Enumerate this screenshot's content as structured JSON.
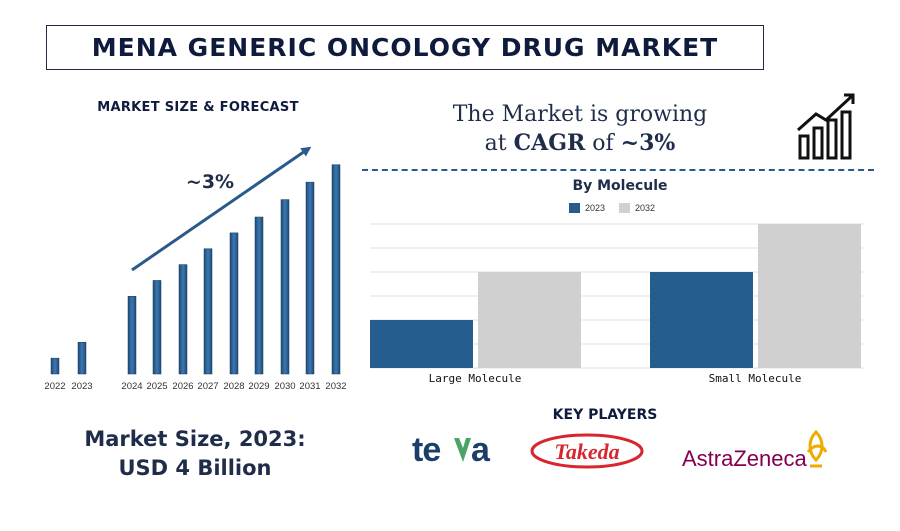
{
  "title": "MENA GENERIC ONCOLOGY DRUG MARKET",
  "forecast": {
    "heading": "MARKET SIZE & FORECAST",
    "growth_label": "~3%"
  },
  "market_size": {
    "line1": "Market Size, 2023:",
    "line2": "USD 4 Billion"
  },
  "cagr": {
    "line1": "The Market is growing",
    "prefix": "at ",
    "cagr_word": "CAGR",
    "of_word": " of ",
    "value": "~3%"
  },
  "molecule": {
    "heading": "By Molecule"
  },
  "key_players": {
    "heading": "KEY PLAYERS",
    "logos": [
      {
        "name": "teva",
        "text": "teva",
        "color": "#1b3f6b"
      },
      {
        "name": "takeda",
        "text": "Takeda",
        "color": "#d7262e"
      },
      {
        "name": "astrazeneca",
        "text": "AstraZeneca",
        "color": "#830051"
      }
    ]
  },
  "colors": {
    "bar_blue": "#255d8e",
    "bar_grey": "#d0d0d0",
    "arrow": "#2a5a8c"
  },
  "chart_data": [
    {
      "type": "bar",
      "title": "MARKET SIZE & FORECAST",
      "categories": [
        "2022",
        "2023",
        "2024",
        "2025",
        "2026",
        "2027",
        "2028",
        "2029",
        "2030",
        "2031",
        "2032"
      ],
      "values": [
        1.0,
        2.0,
        4.9,
        5.9,
        6.9,
        7.9,
        8.9,
        9.9,
        11.0,
        12.1,
        13.2
      ],
      "ylim": [
        0,
        14
      ],
      "annotation": "~3%",
      "grid": false
    },
    {
      "type": "bar",
      "title": "By Molecule",
      "categories": [
        "Large Molecule",
        "Small Molecule"
      ],
      "series": [
        {
          "name": "2023",
          "values": [
            2.0,
            4.0
          ]
        },
        {
          "name": "2032",
          "values": [
            4.0,
            6.0
          ]
        }
      ],
      "ylim": [
        0,
        6
      ],
      "grid": true,
      "legend": "top"
    }
  ]
}
